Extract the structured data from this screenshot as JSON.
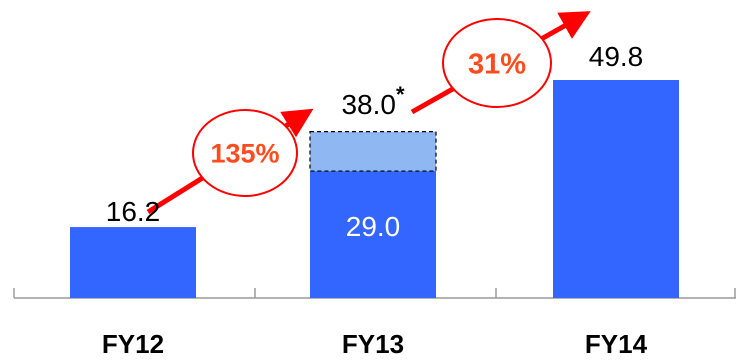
{
  "chart_data": {
    "type": "bar",
    "categories": [
      "FY12",
      "FY13",
      "FY14"
    ],
    "values": [
      16.2,
      29.0,
      49.8
    ],
    "value_labels": [
      "16.2",
      "29.0",
      "49.8"
    ],
    "fy13_adjusted": {
      "value": 38.0,
      "label": "38.0",
      "marker": "*"
    },
    "growth": [
      {
        "from": "FY12",
        "to": "FY13",
        "label": "135%"
      },
      {
        "from": "FY13",
        "to": "FY14",
        "label": "31%"
      }
    ],
    "title": "",
    "xlabel": "",
    "ylabel": "",
    "ylim": [
      0,
      49.8
    ],
    "grid": false,
    "legend": "none"
  },
  "colors": {
    "bar": "#3366ff",
    "adjusted_segment": "#8fb8f2",
    "growth": "#ff0000",
    "growth_label": "#ff4c1f",
    "axis": "#9a9a9a",
    "text": "#000000",
    "inner_text": "#ffffff"
  }
}
